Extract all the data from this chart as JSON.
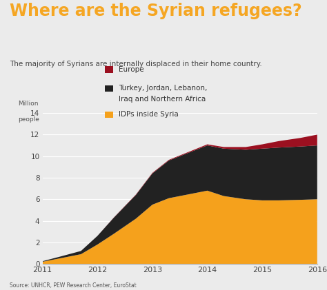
{
  "title": "Where are the Syrian refugees?",
  "subtitle": "The majority of Syrians are internally displaced in their home country.",
  "ylabel_line1": "Million",
  "ylabel_line2": "people",
  "source": "Source: UNHCR, PEW Research Center, EuroStat",
  "bg_color": "#ebebeb",
  "title_color": "#f5a623",
  "subtitle_color": "#444444",
  "source_color": "#555555",
  "years": [
    2011,
    2011.3,
    2011.7,
    2012,
    2012.3,
    2012.7,
    2013,
    2013.3,
    2013.7,
    2014,
    2014.3,
    2014.7,
    2015,
    2015.3,
    2015.7,
    2016
  ],
  "idps_syria": [
    0.2,
    0.5,
    0.9,
    1.8,
    2.8,
    4.2,
    5.5,
    6.1,
    6.5,
    6.8,
    6.3,
    6.0,
    5.9,
    5.9,
    5.95,
    6.0
  ],
  "turkey_jordan": [
    0.05,
    0.15,
    0.3,
    0.8,
    1.5,
    2.2,
    2.9,
    3.5,
    3.9,
    4.2,
    4.4,
    4.6,
    4.8,
    4.9,
    4.95,
    5.0
  ],
  "europe": [
    0.0,
    0.0,
    0.0,
    0.0,
    0.02,
    0.04,
    0.05,
    0.06,
    0.08,
    0.1,
    0.15,
    0.25,
    0.4,
    0.6,
    0.8,
    1.0
  ],
  "color_idps": "#f5a11c",
  "color_turkey": "#222222",
  "color_europe": "#9b1020",
  "legend_europe": "Europe",
  "legend_turkey_1": "Turkey, Jordan, Lebanon,",
  "legend_turkey_2": "Iraq and Northern Africa",
  "legend_idps": "IDPs inside Syria",
  "ylim": [
    0,
    14
  ],
  "xlim": [
    2011,
    2016
  ],
  "yticks": [
    0,
    2,
    4,
    6,
    8,
    10,
    12,
    14
  ],
  "xticks": [
    2011,
    2012,
    2013,
    2014,
    2015,
    2016
  ]
}
